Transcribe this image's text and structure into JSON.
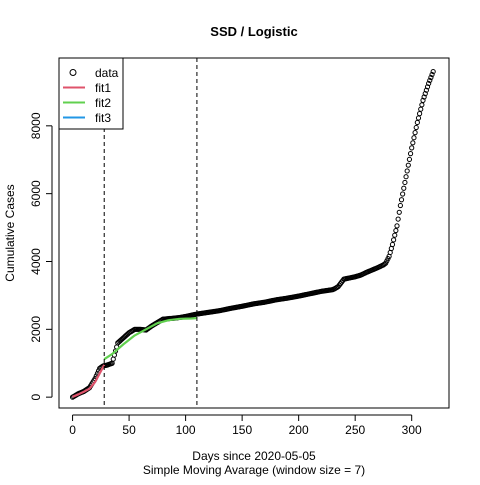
{
  "chart_data": {
    "type": "scatter",
    "title": "SSD / Logistic",
    "xlabel": "Days since 2020-05-05",
    "xlabel2": "Simple Moving Avarage (window size = 7)",
    "ylabel": "Cumulative Cases",
    "xlim": [
      -12,
      333
    ],
    "ylim": [
      -320,
      10000
    ],
    "xticks": [
      0,
      50,
      100,
      150,
      200,
      250,
      300
    ],
    "yticks": [
      0,
      2000,
      4000,
      6000,
      8000
    ],
    "vlines": [
      28,
      110
    ],
    "grid": false,
    "legend_position": "top-left",
    "legend": [
      {
        "label": "data",
        "kind": "point",
        "color": "#000000"
      },
      {
        "label": "fit1",
        "kind": "line",
        "color": "#DF536B"
      },
      {
        "label": "fit2",
        "kind": "line",
        "color": "#61D04F"
      },
      {
        "label": "fit3",
        "kind": "line",
        "color": "#2297E6"
      }
    ],
    "series": [
      {
        "name": "data",
        "kind": "points",
        "color": "#000000",
        "x": [
          0,
          5,
          10,
          15,
          20,
          24,
          27,
          28,
          30,
          35,
          40,
          50,
          55,
          60,
          65,
          70,
          75,
          80,
          90,
          95,
          100,
          110,
          120,
          130,
          140,
          150,
          160,
          170,
          180,
          190,
          200,
          210,
          220,
          230,
          232,
          235,
          240,
          250,
          255,
          260,
          265,
          270,
          275,
          277,
          280,
          283,
          287,
          290,
          295,
          300,
          305,
          310,
          315,
          319
        ],
        "y": [
          0,
          100,
          170,
          280,
          550,
          850,
          920,
          930,
          940,
          1000,
          1600,
          1900,
          2000,
          2000,
          1980,
          2100,
          2200,
          2300,
          2330,
          2350,
          2380,
          2450,
          2500,
          2550,
          2620,
          2680,
          2750,
          2800,
          2870,
          2920,
          2980,
          3050,
          3120,
          3170,
          3200,
          3260,
          3480,
          3550,
          3600,
          3680,
          3750,
          3820,
          3900,
          3950,
          4150,
          4500,
          5050,
          5650,
          6500,
          7350,
          8100,
          8750,
          9250,
          9600
        ]
      },
      {
        "name": "fit1",
        "kind": "line",
        "color": "#DF536B",
        "x": [
          0,
          5,
          10,
          15,
          20,
          24,
          28
        ],
        "y": [
          10,
          80,
          160,
          250,
          450,
          700,
          950
        ]
      },
      {
        "name": "fit2",
        "kind": "line",
        "color": "#61D04F",
        "x": [
          28,
          35,
          45,
          55,
          65,
          75,
          85,
          95,
          105,
          110
        ],
        "y": [
          1120,
          1270,
          1560,
          1820,
          2000,
          2180,
          2270,
          2310,
          2320,
          2330
        ]
      }
    ]
  }
}
